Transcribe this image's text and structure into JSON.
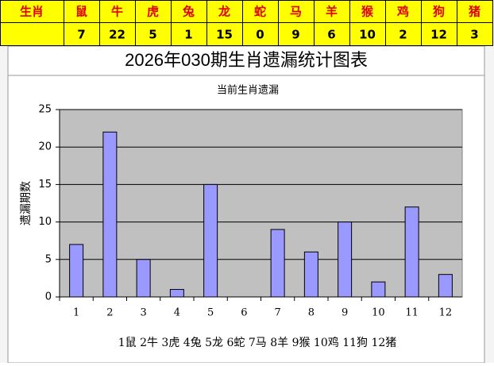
{
  "table": {
    "header": [
      "生肖",
      "鼠",
      "牛",
      "虎",
      "兔",
      "龙",
      "蛇",
      "马",
      "羊",
      "猴",
      "鸡",
      "狗",
      "猪"
    ]
  },
  "chart_data": {
    "type": "bar",
    "title": "2026年030期生肖遗漏统计图表",
    "subtitle": "当前生肖遗漏",
    "ylabel": "遗漏期数",
    "categories": [
      "1",
      "2",
      "3",
      "4",
      "5",
      "6",
      "7",
      "8",
      "9",
      "10",
      "11",
      "12"
    ],
    "values": [
      7,
      22,
      5,
      1,
      15,
      0,
      9,
      6,
      10,
      2,
      12,
      3
    ],
    "color": "#9999ff",
    "ylim": [
      0,
      25
    ],
    "yticks": [
      0,
      5,
      10,
      15,
      20,
      25
    ],
    "grid": true,
    "note": "1鼠 2牛 3虎 4兔 5龙 6蛇 7马 8羊 9猴 10鸡 11狗 12猪"
  }
}
